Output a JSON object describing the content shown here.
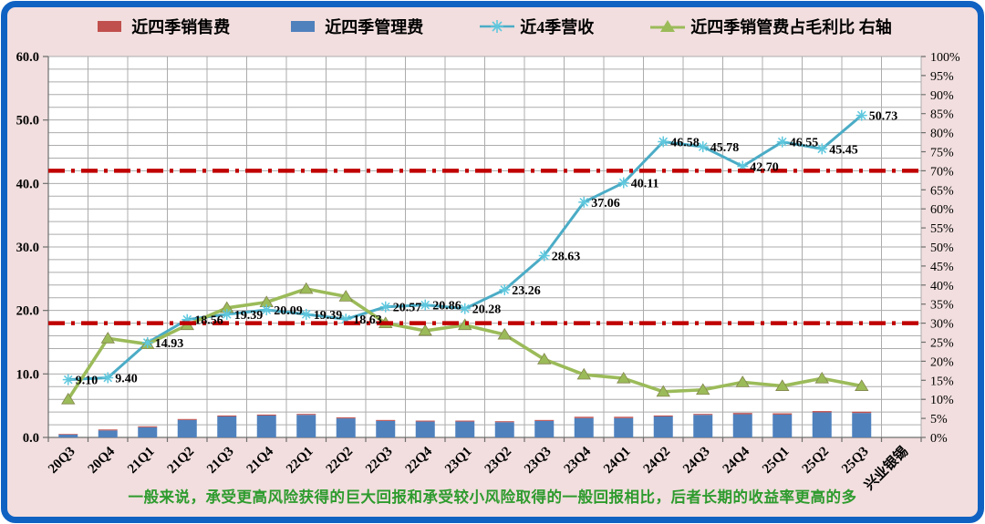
{
  "legend": {
    "items": [
      {
        "label": "近四季销售费",
        "color": "#C0504D",
        "marker": "bar"
      },
      {
        "label": "近四季管理费",
        "color": "#4F81BD",
        "marker": "bar"
      },
      {
        "label": "近4季营收",
        "color": "#4BACC6",
        "marker": "line-asterisk",
        "marker_color": "#5FC8DE"
      },
      {
        "label": "近四季销管费占毛利比 右轴",
        "color": "#9BBB59",
        "marker": "line-triangle"
      }
    ]
  },
  "footnote": {
    "text": "一般来说，承受更高风险获得的巨大回报和承受较小风险取得的一般回报相比，后者长期的收益率更高的多",
    "color": "#2E9B2E"
  },
  "chart_data": {
    "type": "combo",
    "legend_position": "top",
    "grid": true,
    "categories": [
      "20Q3",
      "20Q4",
      "21Q1",
      "21Q2",
      "21Q3",
      "21Q4",
      "22Q1",
      "22Q2",
      "22Q3",
      "22Q4",
      "23Q1",
      "23Q2",
      "23Q3",
      "23Q4",
      "24Q1",
      "24Q2",
      "24Q3",
      "24Q4",
      "25Q1",
      "25Q2",
      "25Q3"
    ],
    "extra_x_label": "兴业银锡",
    "series": [
      {
        "name": "近四季销售费",
        "kind": "bar",
        "stack": "expenses",
        "stack_order": "top",
        "axis": "left",
        "color": "#C0504D",
        "values": [
          0.1,
          0.15,
          0.15,
          0.15,
          0.15,
          0.15,
          0.15,
          0.15,
          0.15,
          0.15,
          0.15,
          0.15,
          0.15,
          0.2,
          0.2,
          0.15,
          0.15,
          0.2,
          0.2,
          0.2,
          0.2
        ]
      },
      {
        "name": "近四季管理费",
        "kind": "bar",
        "stack": "expenses",
        "stack_order": "bottom",
        "axis": "left",
        "color": "#4F81BD",
        "values": [
          0.45,
          1.1,
          1.6,
          2.75,
          3.3,
          3.45,
          3.55,
          3.0,
          2.6,
          2.5,
          2.5,
          2.4,
          2.6,
          3.05,
          3.05,
          3.3,
          3.55,
          3.65,
          3.6,
          3.95,
          3.85
        ]
      },
      {
        "name": "近4季营收",
        "kind": "line",
        "axis": "left",
        "color": "#4BACC6",
        "marker": "asterisk",
        "marker_color": "#5FC8DE",
        "data_labels": true,
        "values": [
          9.1,
          9.4,
          14.93,
          18.56,
          19.39,
          20.09,
          19.39,
          18.63,
          20.57,
          20.86,
          20.28,
          23.26,
          28.63,
          37.06,
          40.11,
          46.58,
          45.78,
          42.7,
          46.55,
          45.45,
          50.73
        ]
      },
      {
        "name": "近四季销管费占毛利比 右轴",
        "kind": "line",
        "axis": "right",
        "color": "#9BBB59",
        "marker": "triangle",
        "data_labels": false,
        "values": [
          10,
          26,
          24.5,
          29.5,
          34,
          35.5,
          39,
          37,
          30,
          28,
          29.5,
          27,
          20.5,
          16.5,
          15.5,
          12,
          12.5,
          14.5,
          13.5,
          15.5,
          13.5
        ]
      }
    ],
    "left_axis": {
      "min": 0,
      "max": 60,
      "tick_step": 10,
      "minor_grid_step": 2,
      "tick_labels": [
        "0.0",
        "10.0",
        "20.0",
        "30.0",
        "40.0",
        "50.0",
        "60.0"
      ]
    },
    "right_axis": {
      "min": 0,
      "max": 100,
      "tick_step": 5,
      "unit": "%"
    },
    "reference_lines": [
      {
        "axis": "right",
        "value": 70,
        "color": "#C00000",
        "style": "dash-dot"
      },
      {
        "axis": "right",
        "value": 30,
        "color": "#C00000",
        "style": "dash-dot"
      }
    ]
  }
}
